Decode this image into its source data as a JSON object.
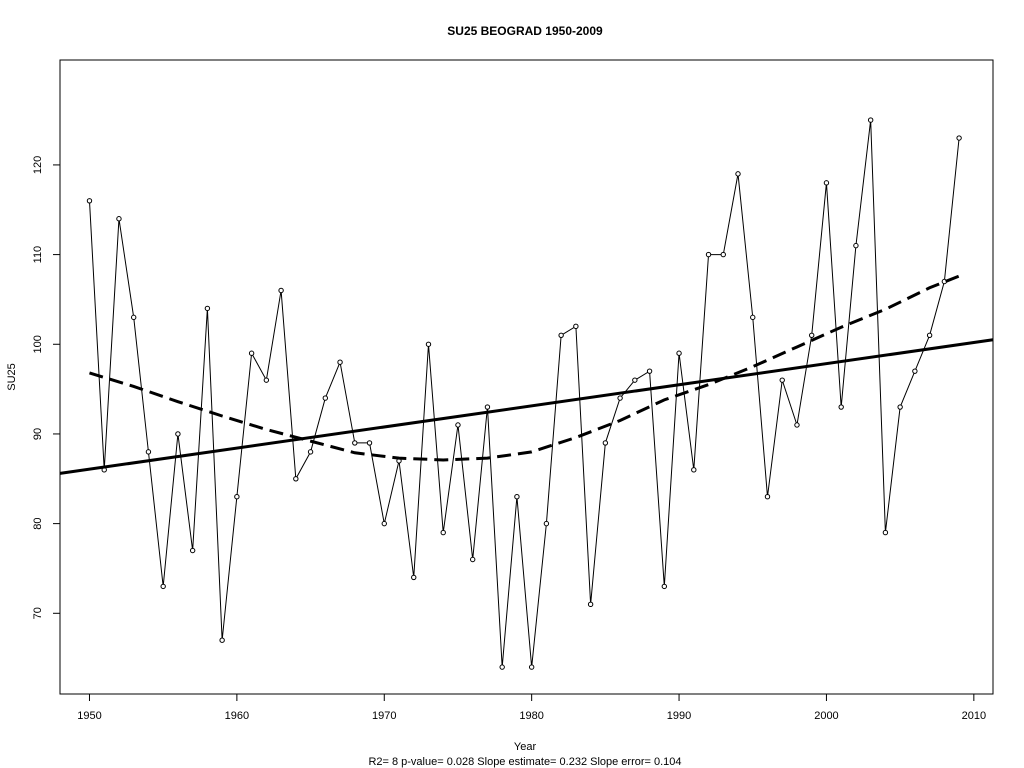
{
  "chart_data": {
    "type": "line",
    "title": "SU25   BEOGRAD 1950-2009",
    "xlabel": "Year",
    "ylabel": "SU25",
    "footnote": "R2= 8  p-value= 0.028  Slope estimate= 0.232  Slope error= 0.104",
    "xlim": [
      1948,
      2011.3
    ],
    "ylim": [
      61,
      131.7
    ],
    "xticks": [
      1950,
      1960,
      1970,
      1980,
      1990,
      2000,
      2010
    ],
    "yticks": [
      70,
      80,
      90,
      100,
      110,
      120
    ],
    "grid": false,
    "series": [
      {
        "style": "line-with-points",
        "color": "#000000",
        "x": [
          1950,
          1951,
          1952,
          1953,
          1954,
          1955,
          1956,
          1957,
          1958,
          1959,
          1960,
          1961,
          1962,
          1963,
          1964,
          1965,
          1966,
          1967,
          1968,
          1969,
          1970,
          1971,
          1972,
          1973,
          1974,
          1975,
          1976,
          1977,
          1978,
          1979,
          1980,
          1981,
          1982,
          1983,
          1984,
          1985,
          1986,
          1987,
          1988,
          1989,
          1990,
          1991,
          1992,
          1993,
          1994,
          1995,
          1996,
          1997,
          1998,
          1999,
          2000,
          2001,
          2002,
          2003,
          2004,
          2005,
          2006,
          2007,
          2008,
          2009
        ],
        "values": [
          116,
          86,
          114,
          103,
          88,
          73,
          90,
          77,
          104,
          67,
          83,
          99,
          96,
          106,
          85,
          88,
          94,
          98,
          89,
          89,
          80,
          87,
          74,
          100,
          79,
          91,
          76,
          93,
          64,
          83,
          64,
          80,
          101,
          102,
          71,
          89,
          94,
          96,
          97,
          73,
          99,
          86,
          110,
          110,
          119,
          103,
          83,
          96,
          91,
          101,
          118,
          93,
          111,
          125,
          79,
          93,
          97,
          101,
          107,
          123
        ]
      },
      {
        "style": "solid-thick",
        "color": "#000000",
        "x": [
          1948,
          2011.3
        ],
        "values": [
          85.6,
          100.5
        ]
      },
      {
        "style": "dashed-thick",
        "color": "#000000",
        "x": [
          1950,
          1953,
          1956,
          1959,
          1962,
          1965,
          1968,
          1971,
          1974,
          1977,
          1980,
          1983,
          1986,
          1989,
          1992,
          1995,
          1998,
          2001,
          2004,
          2007,
          2009
        ],
        "values": [
          96.8,
          95.3,
          93.6,
          92.0,
          90.5,
          89.2,
          87.9,
          87.3,
          87.1,
          87.3,
          88.0,
          89.6,
          91.5,
          93.8,
          95.5,
          97.5,
          99.7,
          101.9,
          103.9,
          106.3,
          107.6
        ]
      }
    ]
  }
}
